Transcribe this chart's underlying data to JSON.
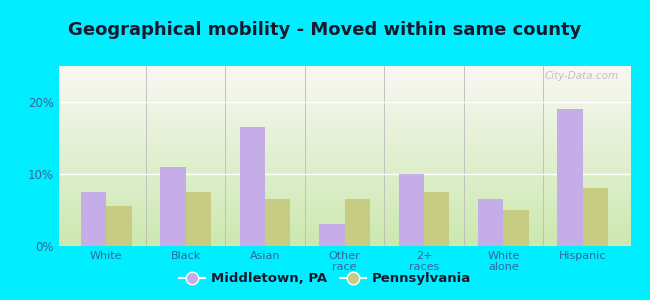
{
  "title": "Geographical mobility - Moved within same county",
  "categories": [
    "White",
    "Black",
    "Asian",
    "Other\nrace",
    "2+\nraces",
    "White\nalone",
    "Hispanic"
  ],
  "middletown_values": [
    7.5,
    11.0,
    16.5,
    3.0,
    10.0,
    6.5,
    19.0
  ],
  "pennsylvania_values": [
    5.5,
    7.5,
    6.5,
    6.5,
    7.5,
    5.0,
    8.0
  ],
  "middletown_color": "#c5aee8",
  "pennsylvania_color": "#c8cc82",
  "background_outer": "#00eeff",
  "background_inner_top": "#f8f8f2",
  "background_inner_bottom": "#cce8b0",
  "ylim": [
    0,
    25
  ],
  "yticks": [
    0,
    10,
    20
  ],
  "ytick_labels": [
    "0%",
    "10%",
    "20%"
  ],
  "legend_label1": "Middletown, PA",
  "legend_label2": "Pennsylvania",
  "bar_width": 0.32,
  "watermark": "City-Data.com",
  "title_color": "#1a1a2e",
  "title_fontsize": 13,
  "tick_color": "#336699"
}
